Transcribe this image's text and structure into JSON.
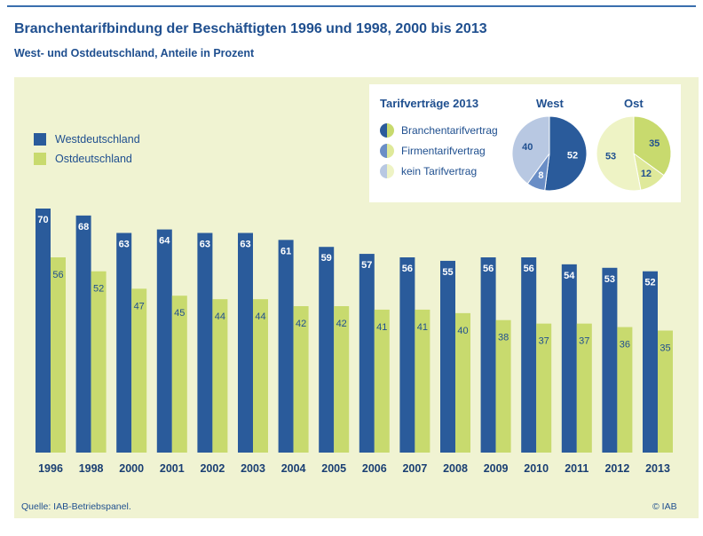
{
  "header": {
    "title": "Branchentarifbindung der Beschäftigten 1996 und 1998, 2000 bis 2013",
    "subtitle": "West- und Ostdeutschland, Anteile in Prozent"
  },
  "colors": {
    "west": "#2a5b9b",
    "ost": "#c8da6e",
    "panel": "#f0f3d2",
    "text": "#1f4f8f",
    "pie_west_firmen": "#6a8ec6",
    "pie_west_kein": "#b8c8e2",
    "pie_ost_firmen": "#dfe99a",
    "pie_ost_kein": "#eef3c5"
  },
  "legend": {
    "items": [
      {
        "label": "Westdeutschland",
        "color": "#2a5b9b"
      },
      {
        "label": "Ostdeutschland",
        "color": "#c8da6e"
      }
    ]
  },
  "inset": {
    "title": "Tarifverträge 2013",
    "west_label": "West",
    "ost_label": "Ost",
    "categories": [
      "Branchentarifvertrag",
      "Firmentarifvertrag",
      "kein Tarifvertrag"
    ]
  },
  "chart_data": [
    {
      "type": "bar",
      "categories": [
        "1996",
        "1998",
        "2000",
        "2001",
        "2002",
        "2003",
        "2004",
        "2005",
        "2006",
        "2007",
        "2008",
        "2009",
        "2010",
        "2011",
        "2012",
        "2013"
      ],
      "series": [
        {
          "name": "Westdeutschland",
          "values": [
            70,
            68,
            63,
            64,
            63,
            63,
            61,
            59,
            57,
            56,
            55,
            56,
            56,
            54,
            53,
            52
          ]
        },
        {
          "name": "Ostdeutschland",
          "values": [
            56,
            52,
            47,
            45,
            44,
            44,
            42,
            42,
            41,
            41,
            40,
            38,
            37,
            37,
            36,
            35
          ]
        }
      ],
      "ylim": [
        0,
        75
      ],
      "grid": false,
      "legend_position": "top-left"
    },
    {
      "type": "pie",
      "title": "West",
      "labels": [
        "Branchentarifvertrag",
        "Firmentarifvertrag",
        "kein Tarifvertrag"
      ],
      "values": [
        52,
        8,
        40
      ]
    },
    {
      "type": "pie",
      "title": "Ost",
      "labels": [
        "Branchentarifvertrag",
        "Firmentarifvertrag",
        "kein Tarifvertrag"
      ],
      "values": [
        35,
        12,
        53
      ]
    }
  ],
  "footer": {
    "source": "Quelle: IAB-Betriebspanel.",
    "copyright": "© IAB"
  }
}
